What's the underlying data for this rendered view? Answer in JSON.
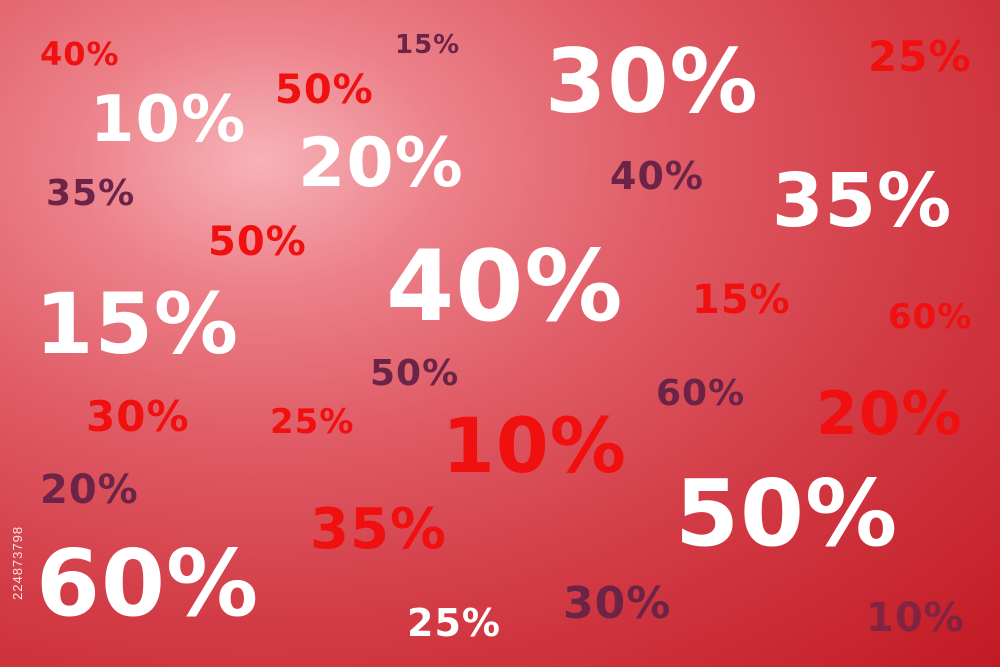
{
  "labels": [
    {
      "text": "40%"
    },
    {
      "text": "15%"
    },
    {
      "text": "50%"
    },
    {
      "text": "10%"
    },
    {
      "text": "30%"
    },
    {
      "text": "25%"
    },
    {
      "text": "20%"
    },
    {
      "text": "40%"
    },
    {
      "text": "35%"
    },
    {
      "text": "35%"
    },
    {
      "text": "50%"
    },
    {
      "text": "40%"
    },
    {
      "text": "15%"
    },
    {
      "text": "60%"
    },
    {
      "text": "15%"
    },
    {
      "text": "50%"
    },
    {
      "text": "60%"
    },
    {
      "text": "20%"
    },
    {
      "text": "30%"
    },
    {
      "text": "25%"
    },
    {
      "text": "10%"
    },
    {
      "text": "20%"
    },
    {
      "text": "50%"
    },
    {
      "text": "35%"
    },
    {
      "text": "60%"
    },
    {
      "text": "30%"
    },
    {
      "text": "25%"
    },
    {
      "text": "10%"
    }
  ],
  "watermark": {
    "text": "224873798"
  },
  "colors": {
    "white": "#ffffff",
    "red": "#f01010",
    "purple": "#6b2448"
  }
}
